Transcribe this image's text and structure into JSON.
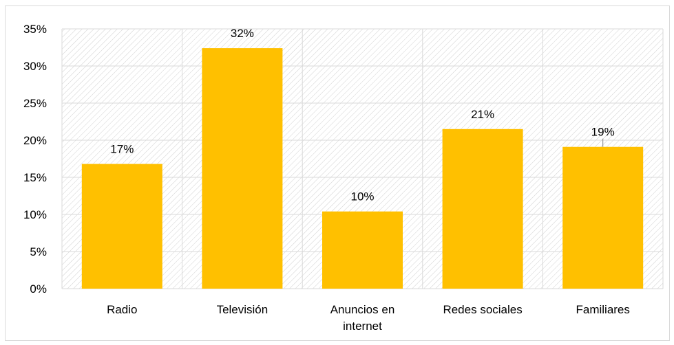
{
  "chart_data": {
    "type": "bar",
    "categories": [
      "Radio",
      "Televisión",
      "Anuncios en internet",
      "Redes sociales",
      "Familiares"
    ],
    "category_lines": [
      [
        "Radio"
      ],
      [
        "Televisión"
      ],
      [
        "Anuncios en",
        "internet"
      ],
      [
        "Redes sociales"
      ],
      [
        "Familiares"
      ]
    ],
    "values": [
      17,
      32,
      10,
      21,
      19
    ],
    "plotted_values": [
      16.8,
      32.4,
      10.4,
      21.5,
      19.1
    ],
    "data_labels": [
      "17%",
      "32%",
      "10%",
      "21%",
      "19%"
    ],
    "y_ticks": [
      "0%",
      "5%",
      "10%",
      "15%",
      "20%",
      "25%",
      "30%",
      "35%"
    ],
    "ylim": [
      0,
      35
    ],
    "title": "",
    "xlabel": "",
    "ylabel": "",
    "grid": true,
    "legend": "none",
    "bar_color": "#FFC000",
    "grid_color": "#d9d9d9",
    "hatch_color": "#d0d0d0"
  }
}
